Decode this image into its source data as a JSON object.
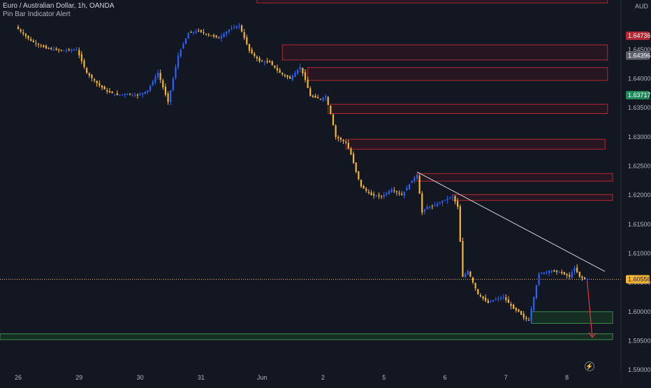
{
  "header": {
    "symbol_title": "Euro / Australian Dollar, 1h, OANDA",
    "indicator": "Pin Bar Indicator Alert",
    "currency": "AUD"
  },
  "colors": {
    "background": "#131722",
    "bull": "#2962ff",
    "bear": "#f7b733",
    "zone_red_fill": "rgba(120,20,40,0.18)",
    "zone_red_border": "#b22833",
    "zone_green_fill": "rgba(30,110,40,0.25)",
    "zone_green_border": "#3d8b47",
    "trendline": "#d1d4dc",
    "arrow": "#e0323d",
    "current_price": "#f7b733"
  },
  "chart_data": {
    "type": "candlestick",
    "y_axis": {
      "ylim": [
        1.5875,
        1.6535
      ],
      "ticks": [
        "1.59000",
        "1.59500",
        "1.60000",
        "1.60500",
        "1.61000",
        "1.61500",
        "1.62000",
        "1.62500",
        "1.63000",
        "1.63500",
        "1.64000",
        "1.64500"
      ]
    },
    "x_axis": {
      "ticks": [
        {
          "label": "26",
          "bar": 0
        },
        {
          "label": "29",
          "bar": 24
        },
        {
          "label": "30",
          "bar": 48
        },
        {
          "label": "31",
          "bar": 72
        },
        {
          "label": "Jun",
          "bar": 96
        },
        {
          "label": "2",
          "bar": 120
        },
        {
          "label": "5",
          "bar": 144
        },
        {
          "label": "6",
          "bar": 168
        },
        {
          "label": "7",
          "bar": 192
        },
        {
          "label": "8",
          "bar": 216
        }
      ],
      "bars_total": 232
    },
    "price_labels": [
      {
        "value": 1.64736,
        "text": "1.64736",
        "style": "red"
      },
      {
        "value": 1.64396,
        "text": "1.64396",
        "style": "grey"
      },
      {
        "value": 1.63717,
        "text": "1.63717",
        "style": "green"
      },
      {
        "value": 1.60556,
        "text": "1.60556",
        "style": "orange"
      }
    ],
    "current_price": 1.60556,
    "candles_anchor": [
      [
        0,
        1.6489
      ],
      [
        6,
        1.6465
      ],
      [
        12,
        1.6452
      ],
      [
        18,
        1.6448
      ],
      [
        24,
        1.645
      ],
      [
        28,
        1.641
      ],
      [
        32,
        1.6392
      ],
      [
        36,
        1.6378
      ],
      [
        40,
        1.6372
      ],
      [
        44,
        1.6374
      ],
      [
        48,
        1.6371
      ],
      [
        52,
        1.638
      ],
      [
        56,
        1.641
      ],
      [
        60,
        1.636
      ],
      [
        64,
        1.644
      ],
      [
        68,
        1.6478
      ],
      [
        72,
        1.6482
      ],
      [
        76,
        1.6475
      ],
      [
        80,
        1.647
      ],
      [
        84,
        1.6484
      ],
      [
        88,
        1.6492
      ],
      [
        92,
        1.6448
      ],
      [
        96,
        1.643
      ],
      [
        100,
        1.6428
      ],
      [
        104,
        1.641
      ],
      [
        108,
        1.64
      ],
      [
        112,
        1.642
      ],
      [
        114,
        1.6398
      ],
      [
        116,
        1.637
      ],
      [
        120,
        1.6365
      ],
      [
        122,
        1.637
      ],
      [
        124,
        1.634
      ],
      [
        126,
        1.63
      ],
      [
        130,
        1.629
      ],
      [
        132,
        1.627
      ],
      [
        134,
        1.624
      ],
      [
        136,
        1.6215
      ],
      [
        140,
        1.62
      ],
      [
        144,
        1.6198
      ],
      [
        148,
        1.621
      ],
      [
        152,
        1.62
      ],
      [
        156,
        1.6225
      ],
      [
        158,
        1.6235
      ],
      [
        160,
        1.617
      ],
      [
        162,
        1.618
      ],
      [
        164,
        1.618
      ],
      [
        168,
        1.619
      ],
      [
        172,
        1.6198
      ],
      [
        174,
        1.618
      ],
      [
        176,
        1.606
      ],
      [
        178,
        1.607
      ],
      [
        180,
        1.605
      ],
      [
        182,
        1.603
      ],
      [
        186,
        1.6015
      ],
      [
        188,
        1.602
      ],
      [
        192,
        1.6025
      ],
      [
        196,
        1.6005
      ],
      [
        198,
        1.6
      ],
      [
        200,
        1.599
      ],
      [
        202,
        1.5985
      ],
      [
        204,
        1.6025
      ],
      [
        206,
        1.6065
      ],
      [
        210,
        1.607
      ],
      [
        214,
        1.6068
      ],
      [
        218,
        1.606
      ],
      [
        220,
        1.6075
      ],
      [
        222,
        1.606
      ],
      [
        224,
        1.6056
      ]
    ],
    "zones": [
      {
        "kind": "supply",
        "x_start_bar": 94,
        "x_end_bar": 232,
        "y_top": 1.6542,
        "y_bottom": 1.653
      },
      {
        "kind": "supply",
        "x_start_bar": 104,
        "x_end_bar": 232,
        "y_top": 1.6458,
        "y_bottom": 1.6432
      },
      {
        "kind": "supply",
        "x_start_bar": 114,
        "x_end_bar": 232,
        "y_top": 1.6419,
        "y_bottom": 1.6397
      },
      {
        "kind": "supply",
        "x_start_bar": 122,
        "x_end_bar": 232,
        "y_top": 1.6356,
        "y_bottom": 1.634
      },
      {
        "kind": "supply",
        "x_start_bar": 129,
        "x_end_bar": 231,
        "y_top": 1.6296,
        "y_bottom": 1.6279
      },
      {
        "kind": "supply",
        "x_start_bar": 157,
        "x_end_bar": 234,
        "y_top": 1.6237,
        "y_bottom": 1.6224
      },
      {
        "kind": "supply",
        "x_start_bar": 171,
        "x_end_bar": 234,
        "y_top": 1.6201,
        "y_bottom": 1.6191
      },
      {
        "kind": "demand",
        "x_start_bar": 202,
        "x_end_bar": 234,
        "y_top": 1.6,
        "y_bottom": 1.598
      },
      {
        "kind": "demand",
        "x_start_bar": -1,
        "x_end_bar": 234,
        "y_top": 1.5962,
        "y_bottom": 1.5952
      }
    ],
    "trendline": {
      "x1_bar": 157,
      "y1": 1.624,
      "x2_bar": 231,
      "y2": 1.6069
    },
    "arrow": {
      "x1_bar": 224,
      "y1": 1.6052,
      "x2_bar": 226,
      "y2": 1.5956
    }
  }
}
